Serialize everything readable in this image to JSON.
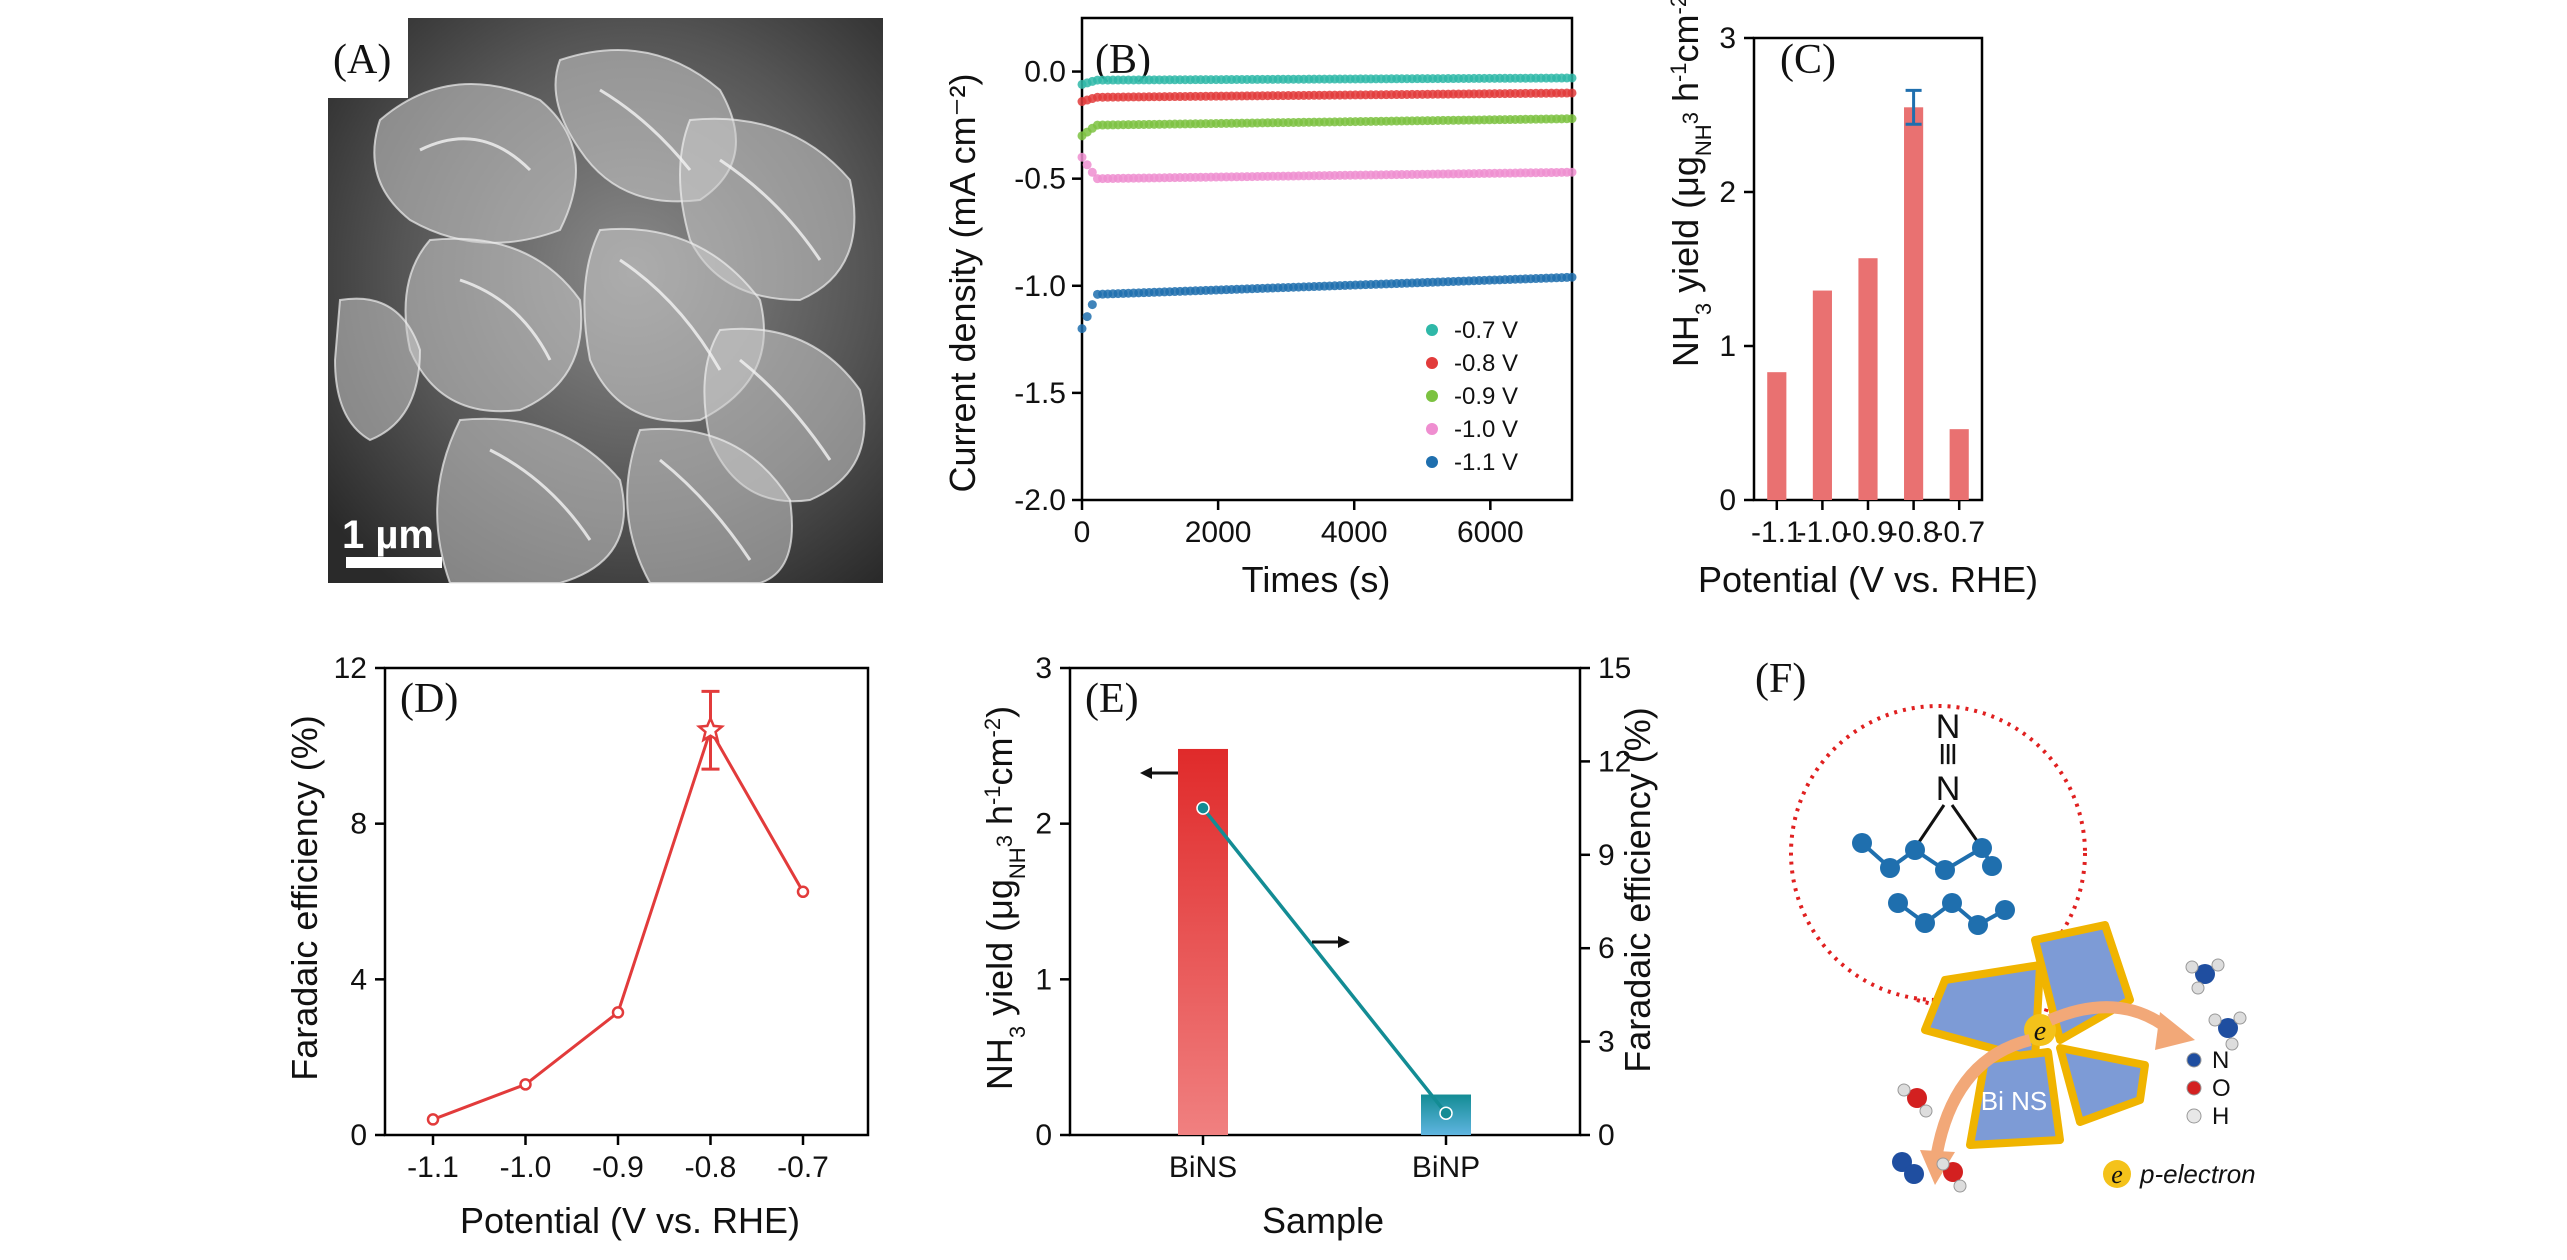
{
  "panels": {
    "A": {
      "label": "(A)",
      "scale_bar": "1 µm"
    },
    "F": {
      "label": "(F)",
      "center_text": "Bi NS",
      "electron_symbol": "e",
      "n2_triple": "≡",
      "n_letter": "N",
      "legend": [
        {
          "letter": "N",
          "color": "#1f4ea0"
        },
        {
          "letter": "O",
          "color": "#d32020"
        },
        {
          "letter": "H",
          "color": "#e8e8e8"
        }
      ],
      "electron_legend": "p-electron",
      "colors": {
        "sheet": "#7d9bd6",
        "sheet_edge": "#f0b400",
        "atom": "#1f6fae",
        "dash": "#e02020",
        "arrow": "#f2a878"
      }
    }
  },
  "chart_data": [
    {
      "panel": "B",
      "label": "(B)",
      "type": "scatter",
      "xlabel": "Times (s)",
      "ylabel": "Current density (mA cm⁻²)",
      "xlim": [
        0,
        7200
      ],
      "ylim": [
        -2.0,
        0.25
      ],
      "xticks": [
        "0",
        "2000",
        "4000",
        "6000"
      ],
      "yticks": [
        "-2.0",
        "-1.5",
        "-1.0",
        "-0.5",
        "0.0"
      ],
      "series": [
        {
          "name": "-0.7 V",
          "color": "#2fb8a8",
          "start": -0.06,
          "level": -0.04,
          "end": -0.03
        },
        {
          "name": "-0.8 V",
          "color": "#e23b3b",
          "start": -0.14,
          "level": -0.12,
          "end": -0.1
        },
        {
          "name": "-0.9 V",
          "color": "#7cc241",
          "start": -0.3,
          "level": -0.25,
          "end": -0.22
        },
        {
          "name": "-1.0 V",
          "color": "#ef8ed0",
          "start": -0.4,
          "level": -0.5,
          "end": -0.47
        },
        {
          "name": "-1.1 V",
          "color": "#1f6fae",
          "start": -1.2,
          "level": -1.04,
          "end": -0.96
        }
      ]
    },
    {
      "panel": "C",
      "label": "(C)",
      "type": "bar",
      "xlabel": "Potential (V vs. RHE)",
      "ylabel_parts": [
        "NH",
        "3",
        " yield (μg",
        "NH",
        "3",
        " h",
        "-1",
        "cm",
        "-2",
        ")"
      ],
      "categories": [
        "-1.1",
        "-1.0",
        "-0.9",
        "-0.8",
        "-0.7"
      ],
      "values": [
        0.83,
        1.36,
        1.57,
        2.55,
        0.46
      ],
      "error": [
        0,
        0,
        0,
        0.11,
        0
      ],
      "ylim": [
        0,
        3
      ],
      "yticks": [
        "0",
        "1",
        "2",
        "3"
      ],
      "bar_color": "#e97171",
      "error_color": "#1f6fae"
    },
    {
      "panel": "D",
      "label": "(D)",
      "type": "line",
      "xlabel": "Potential (V vs. RHE)",
      "ylabel": "Faradaic efficiency (%)",
      "categories": [
        "-1.1",
        "-1.0",
        "-0.9",
        "-0.8",
        "-0.7"
      ],
      "values": [
        0.4,
        1.3,
        3.15,
        10.4,
        6.25
      ],
      "error": [
        0,
        0,
        0,
        1.0,
        0
      ],
      "ylim": [
        0,
        12
      ],
      "yticks": [
        "0",
        "4",
        "8",
        "12"
      ],
      "color": "#e23b3b"
    },
    {
      "panel": "E",
      "label": "(E)",
      "type": "bar",
      "xlabel": "Sample",
      "ylabel_left_parts": [
        "NH",
        "3",
        " yield (μg",
        "NH",
        "3",
        " h",
        "-1",
        "cm",
        "-2",
        ")"
      ],
      "ylabel_right": "Faradaic efficiency (%)",
      "categories": [
        "BiNS",
        "BiNP"
      ],
      "yield_values": [
        2.48,
        0.26
      ],
      "fe_values": [
        10.5,
        0.7
      ],
      "ylim_left": [
        0,
        3
      ],
      "yticks_left": [
        "0",
        "1",
        "2",
        "3"
      ],
      "ylim_right": [
        0,
        15
      ],
      "yticks_right": [
        "0",
        "3",
        "6",
        "9",
        "12",
        "15"
      ],
      "bar_colors": [
        [
          "#e02a2a",
          "#f08080"
        ],
        [
          "#138c94",
          "#5fb4e0"
        ]
      ],
      "line_color": "#138c94"
    }
  ]
}
